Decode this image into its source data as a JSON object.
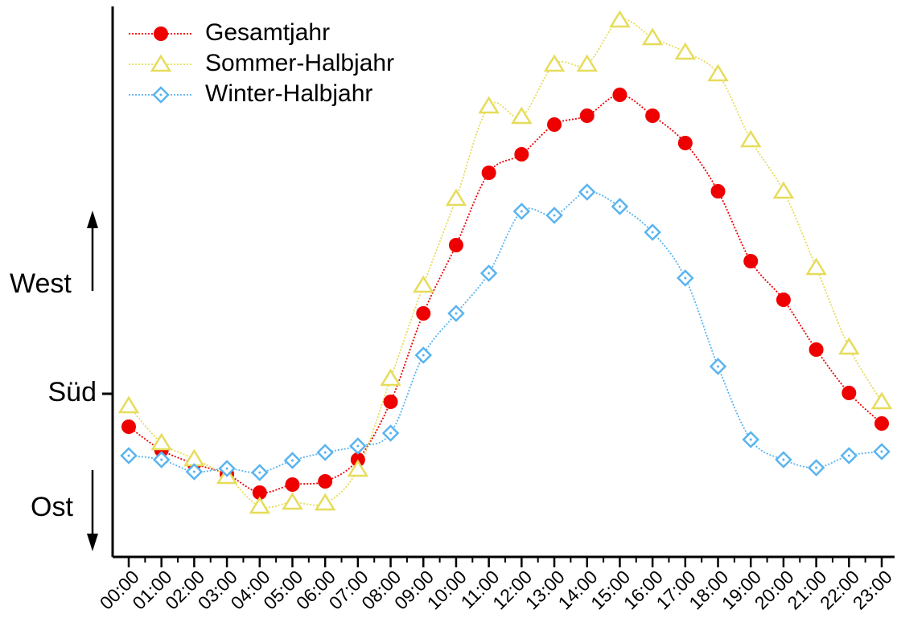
{
  "chart_data": {
    "type": "line",
    "categories": [
      "00:00",
      "01:00",
      "02:00",
      "03:00",
      "04:00",
      "05:00",
      "06:00",
      "07:00",
      "08:00",
      "09:00",
      "10:00",
      "11:00",
      "12:00",
      "13:00",
      "14:00",
      "15:00",
      "16:00",
      "17:00",
      "18:00",
      "19:00",
      "20:00",
      "21:00",
      "22:00",
      "23:00"
    ],
    "series": [
      {
        "name": "Gesamtjahr",
        "color": "#ee0000",
        "marker": "circle",
        "values": [
          -0.41,
          -0.7,
          -0.87,
          -1.0,
          -1.23,
          -1.13,
          -1.09,
          -0.82,
          -0.1,
          1.0,
          1.85,
          2.75,
          2.98,
          3.35,
          3.46,
          3.72,
          3.46,
          3.12,
          2.52,
          1.65,
          1.17,
          0.55,
          0.01,
          -0.37
        ]
      },
      {
        "name": "Sommer-Halbjahr",
        "color": "#e6dc5a",
        "marker": "triangle",
        "values": [
          -0.15,
          -0.61,
          -0.81,
          -1.03,
          -1.4,
          -1.35,
          -1.36,
          -0.94,
          0.19,
          1.35,
          2.43,
          3.58,
          3.45,
          4.1,
          4.1,
          4.65,
          4.43,
          4.25,
          3.98,
          3.16,
          2.52,
          1.57,
          0.58,
          -0.1
        ]
      },
      {
        "name": "Winter-Halbjahr",
        "color": "#5ab4f0",
        "marker": "diamond",
        "values": [
          -0.77,
          -0.82,
          -0.97,
          -0.93,
          -0.98,
          -0.83,
          -0.73,
          -0.65,
          -0.49,
          0.48,
          1.0,
          1.5,
          2.27,
          2.22,
          2.51,
          2.33,
          2.01,
          1.44,
          0.34,
          -0.57,
          -0.82,
          -0.92,
          -0.77,
          -0.72
        ]
      }
    ],
    "ylim": [
      -2.03,
      4.8
    ],
    "yticks": [
      {
        "value": 0,
        "label": "Süd"
      }
    ],
    "annotations": [
      "West",
      "Ost"
    ],
    "legend": "upper left",
    "grid": false
  }
}
